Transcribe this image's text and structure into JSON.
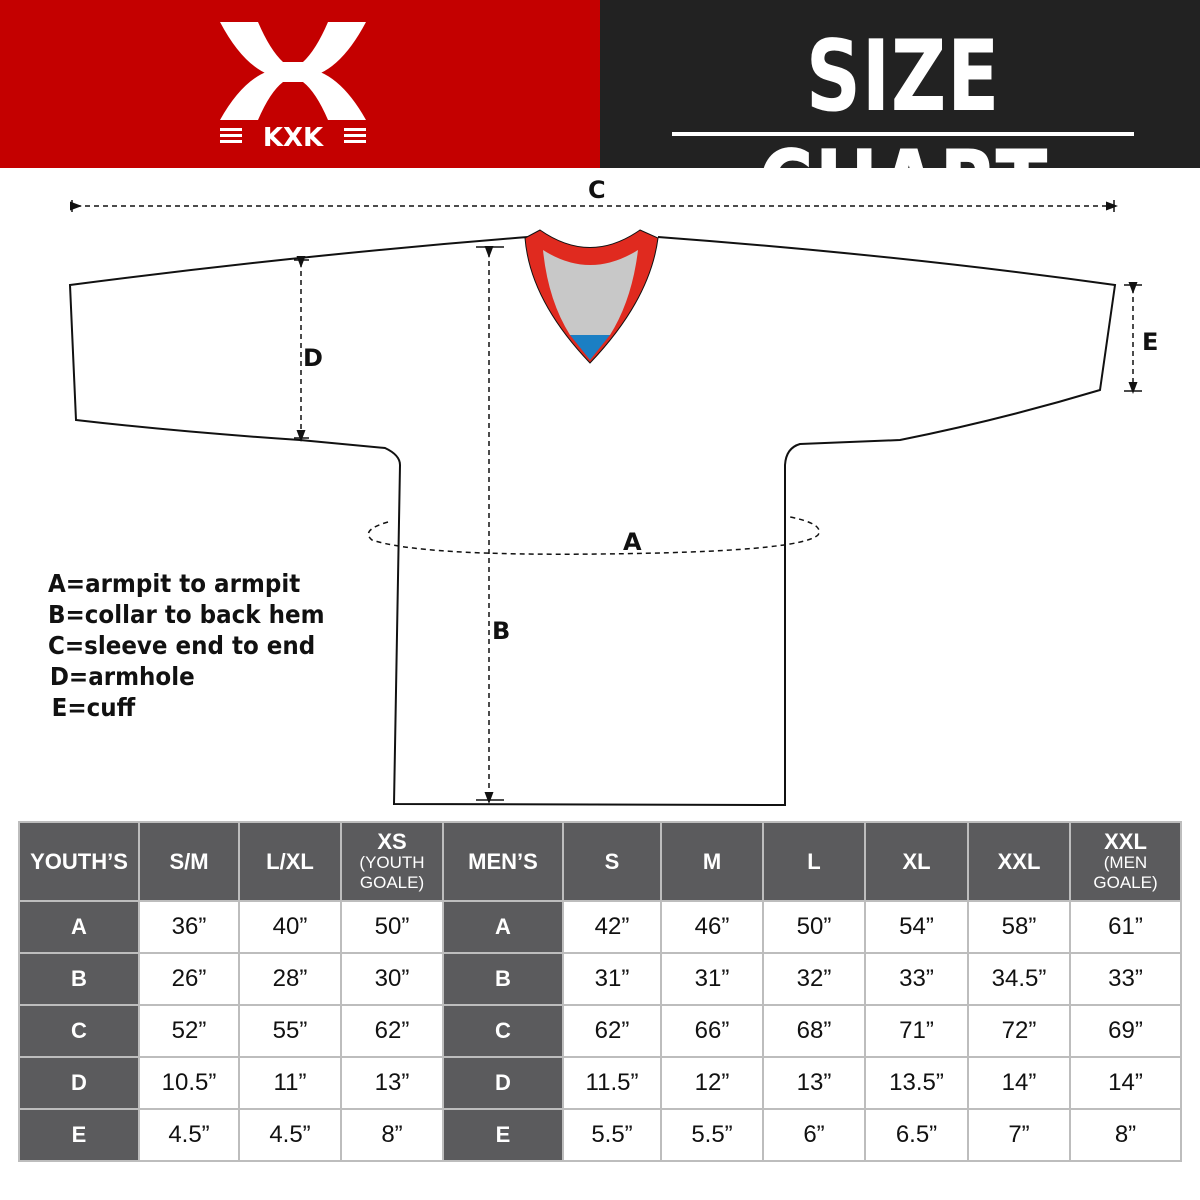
{
  "brand": {
    "logo_text": "KXK",
    "colors": {
      "red": "#c40000",
      "dark": "#222222",
      "table_header": "#5b5b5d",
      "collar_red": "#e02a1f",
      "collar_gray": "#c8c8c8",
      "collar_blue": "#1b7fc4"
    }
  },
  "header": {
    "title": "SIZE CHART"
  },
  "diagram": {
    "labels": {
      "a": "A",
      "b": "B",
      "c": "C",
      "d": "D",
      "e": "E"
    },
    "legend": [
      "A=armpit to armpit",
      "B=collar to back hem",
      "C=sleeve end to end",
      "D=armhole",
      "E=cuff"
    ]
  },
  "table": {
    "columns": [
      {
        "main": "YOUTH’S",
        "sub": ""
      },
      {
        "main": "S/M",
        "sub": ""
      },
      {
        "main": "L/XL",
        "sub": ""
      },
      {
        "main": "XS",
        "sub": "(YOUTH GOALE)"
      },
      {
        "main": "MEN’S",
        "sub": ""
      },
      {
        "main": "S",
        "sub": ""
      },
      {
        "main": "M",
        "sub": ""
      },
      {
        "main": "L",
        "sub": ""
      },
      {
        "main": "XL",
        "sub": ""
      },
      {
        "main": "XXL",
        "sub": ""
      },
      {
        "main": "XXL",
        "sub": "(MEN GOALE)"
      }
    ],
    "rows": [
      {
        "label": "A",
        "youth": [
          "36”",
          "40”",
          "50”"
        ],
        "men": [
          "42”",
          "46”",
          "50”",
          "54”",
          "58”",
          "61”"
        ]
      },
      {
        "label": "B",
        "youth": [
          "26”",
          "28”",
          "30”"
        ],
        "men": [
          "31”",
          "31”",
          "32”",
          "33”",
          "34.5”",
          "33”"
        ]
      },
      {
        "label": "C",
        "youth": [
          "52”",
          "55”",
          "62”"
        ],
        "men": [
          "62”",
          "66”",
          "68”",
          "71”",
          "72”",
          "69”"
        ]
      },
      {
        "label": "D",
        "youth": [
          "10.5”",
          "11”",
          "13”"
        ],
        "men": [
          "11.5”",
          "12”",
          "13”",
          "13.5”",
          "14”",
          "14”"
        ]
      },
      {
        "label": "E",
        "youth": [
          "4.5”",
          "4.5”",
          "8”"
        ],
        "men": [
          "5.5”",
          "5.5”",
          "6”",
          "6.5”",
          "7”",
          "8”"
        ]
      }
    ]
  }
}
